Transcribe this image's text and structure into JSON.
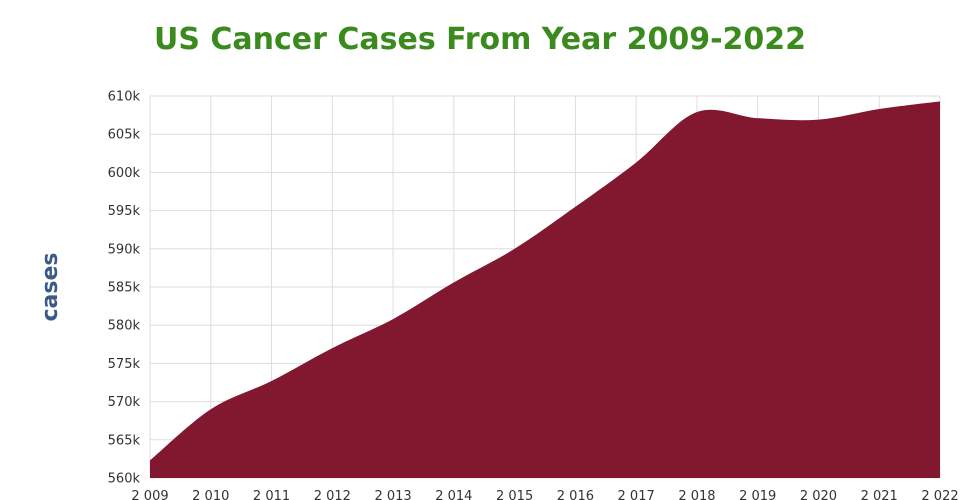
{
  "chart_data": {
    "type": "area",
    "title": "US Cancer Cases From Year 2009-2022",
    "xlabel": "",
    "ylabel": "cases",
    "x": [
      2009,
      2010,
      2011,
      2012,
      2013,
      2014,
      2015,
      2016,
      2017,
      2018,
      2019,
      2020,
      2021,
      2022
    ],
    "x_tick_labels": [
      "2 009",
      "2 010",
      "2 011",
      "2 012",
      "2 013",
      "2 014",
      "2 015",
      "2 016",
      "2 017",
      "2 018",
      "2 019",
      "2 020",
      "2 021",
      "2 022"
    ],
    "y_tick_labels": [
      "560k",
      "565k",
      "570k",
      "575k",
      "580k",
      "585k",
      "590k",
      "595k",
      "600k",
      "605k",
      "610k"
    ],
    "y_ticks": [
      560000,
      565000,
      570000,
      575000,
      580000,
      585000,
      590000,
      595000,
      600000,
      605000,
      610000
    ],
    "series": [
      {
        "values": [
          562300,
          569000,
          572700,
          577000,
          580800,
          585600,
          590000,
          595500,
          601300,
          607900,
          607100,
          606900,
          608300,
          609300
        ]
      }
    ],
    "ylim": [
      560000,
      610000
    ],
    "xlim": [
      2009,
      2022
    ],
    "grid": true,
    "colors": {
      "area": "#811830",
      "title": "#3a8a1e",
      "ylabel": "#3b5a88",
      "grid": "#dddddd"
    }
  }
}
